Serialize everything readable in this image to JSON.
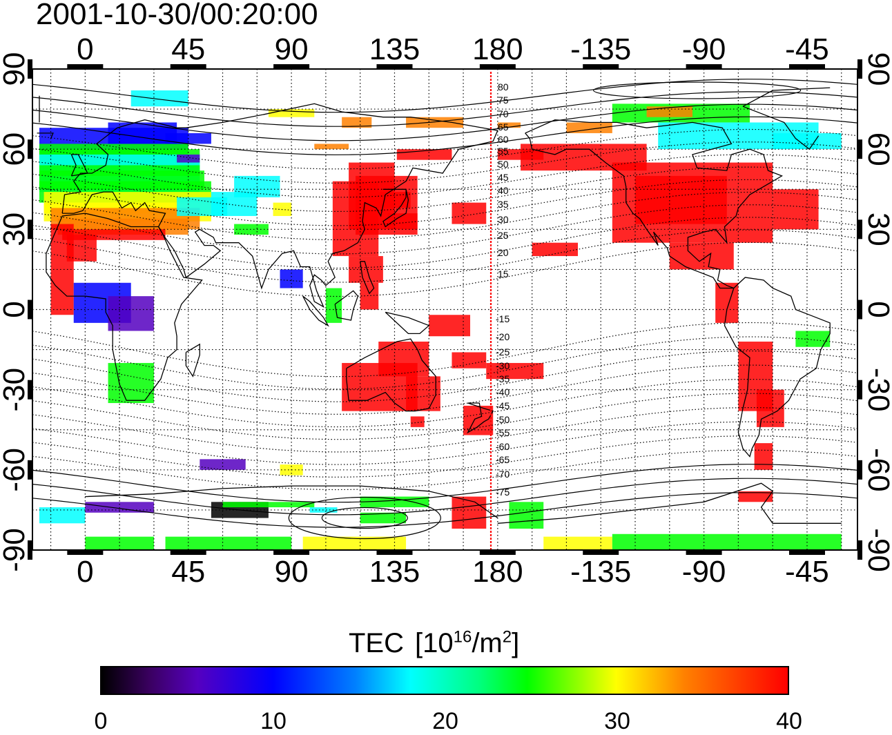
{
  "title": "2001-10-30/00:20:00",
  "axes": {
    "lon_ticks": [
      "0",
      "45",
      "90",
      "135",
      "180",
      "-135",
      "-90",
      "-45"
    ],
    "lat_ticks": [
      "90",
      "60",
      "30",
      "0",
      "-30",
      "-60",
      "-90"
    ],
    "lon_range_deg": [
      -23,
      337
    ],
    "lat_range_deg": [
      -90,
      90
    ],
    "grid": "dotted"
  },
  "meridian_line": {
    "lon": 175,
    "color": "#ff0000"
  },
  "contour_labels": {
    "north": [
      "80",
      "75",
      "70",
      "65",
      "60",
      "55",
      "50",
      "45",
      "40",
      "35",
      "30",
      "25",
      "20",
      "15"
    ],
    "south": [
      "-15",
      "-20",
      "-25",
      "-30",
      "-35",
      "-40",
      "-45",
      "-50",
      "-55",
      "-60",
      "-65",
      "-70",
      "-75"
    ]
  },
  "colorbar": {
    "title_main": "TEC",
    "unit_prefix": "[10",
    "unit_exp": "16",
    "unit_mid": "/m",
    "unit_exp2": "2",
    "unit_close": "]",
    "ticks": [
      "0",
      "10",
      "20",
      "30",
      "40"
    ],
    "range": [
      0,
      40
    ],
    "colors": [
      "#000000",
      "#5500c0",
      "#0000ff",
      "#00ffff",
      "#00ff00",
      "#ffff00",
      "#ff8000",
      "#ff0000"
    ]
  }
}
